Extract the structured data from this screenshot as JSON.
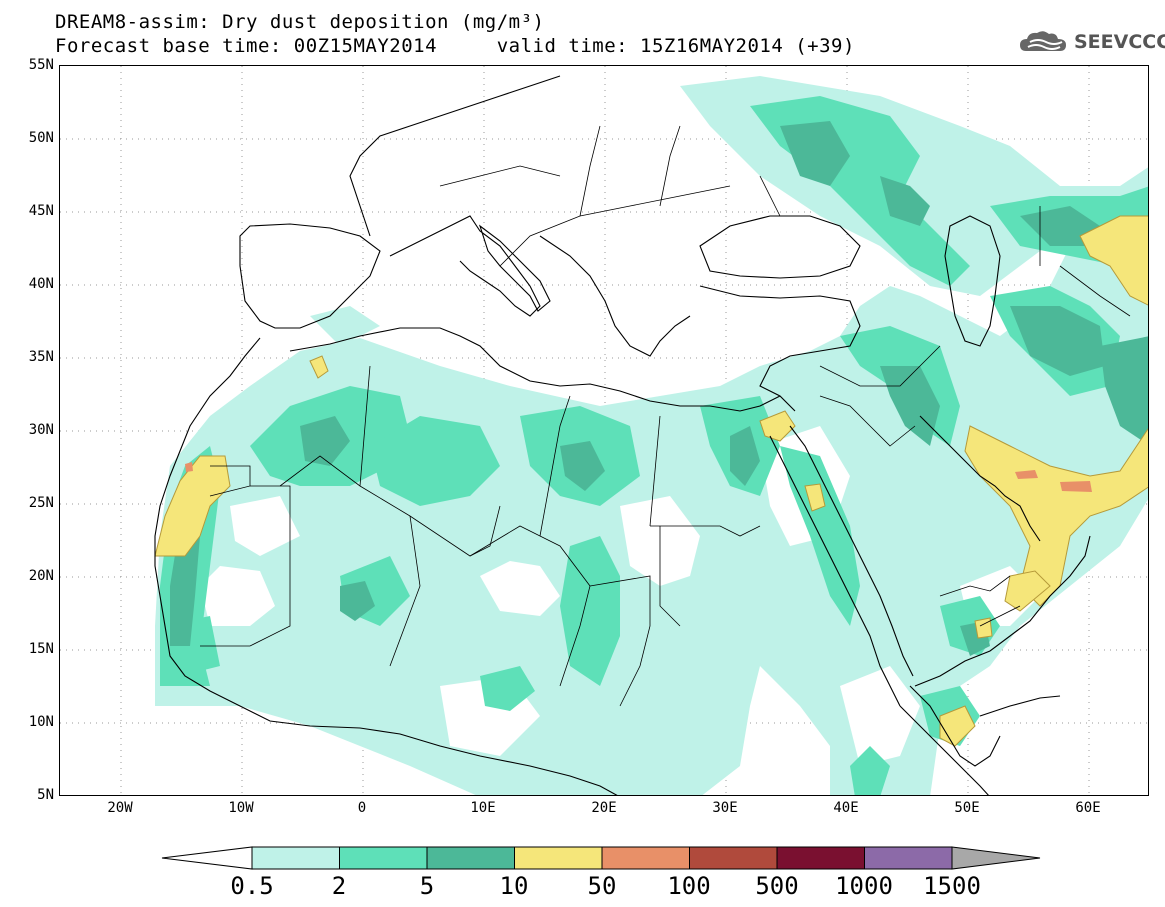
{
  "title": {
    "line1": "DREAM8-assim: Dry dust deposition (mg/m³)",
    "line2": "Forecast base time: 00Z15MAY2014     valid time: 15Z16MAY2014 (+39)"
  },
  "logo": {
    "text": "SEEVCCC",
    "icon": "cloud-logo-icon"
  },
  "map": {
    "lon_range": [
      -25,
      65
    ],
    "lat_range": [
      5,
      55
    ],
    "grid": "dotted",
    "lat_labels": [
      "55N",
      "50N",
      "45N",
      "40N",
      "35N",
      "30N",
      "25N",
      "20N",
      "15N",
      "10N",
      "5N"
    ],
    "lon_labels": [
      "20W",
      "10W",
      "0",
      "10E",
      "20E",
      "30E",
      "40E",
      "50E",
      "60E"
    ]
  },
  "colorbar": {
    "labels": [
      "0.5",
      "2",
      "5",
      "10",
      "50",
      "100",
      "500",
      "1000",
      "1500"
    ],
    "colors": [
      "#bff2e8",
      "#5ee0b8",
      "#4cb898",
      "#f5e67a",
      "#e89068",
      "#b04a3c",
      "#7a1030",
      "#8c6aa8"
    ],
    "under_color": "#ffffff",
    "over_color": "#a8a8a8"
  }
}
